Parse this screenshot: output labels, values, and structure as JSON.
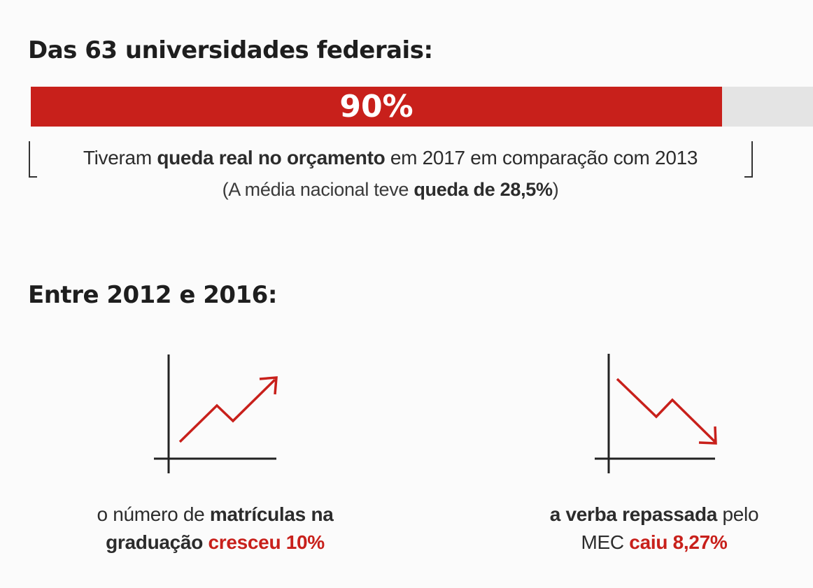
{
  "heading_universities": "Das 63 universidades federais:",
  "budget_bar": {
    "label": "90%",
    "fraction": 0.9,
    "fill_color": "#c8201b",
    "track_color": "#e4e4e4"
  },
  "description": {
    "line1_prefix": "Tiveram ",
    "line1_bold": "queda real no orçamento",
    "line1_suffix": " em 2017 em comparação com 2013",
    "line2_prefix": "(A média nacional teve ",
    "line2_bold": "queda de 28,5%",
    "line2_suffix": ")"
  },
  "heading_period": "Entre 2012 e 2016:",
  "enrollment": {
    "icon": "trend-up-chart-icon",
    "text_prefix": "o número de ",
    "text_bold": "matrículas na",
    "text_bold_2": "graduação",
    "text_red": "cresceu 10%"
  },
  "funding": {
    "icon": "trend-down-chart-icon",
    "text_bold": "a verba repassada",
    "text_suffix": " pelo",
    "text_prefix_2": "MEC ",
    "text_red": "caiu 8,27%"
  },
  "accent_color": "#c8201b"
}
